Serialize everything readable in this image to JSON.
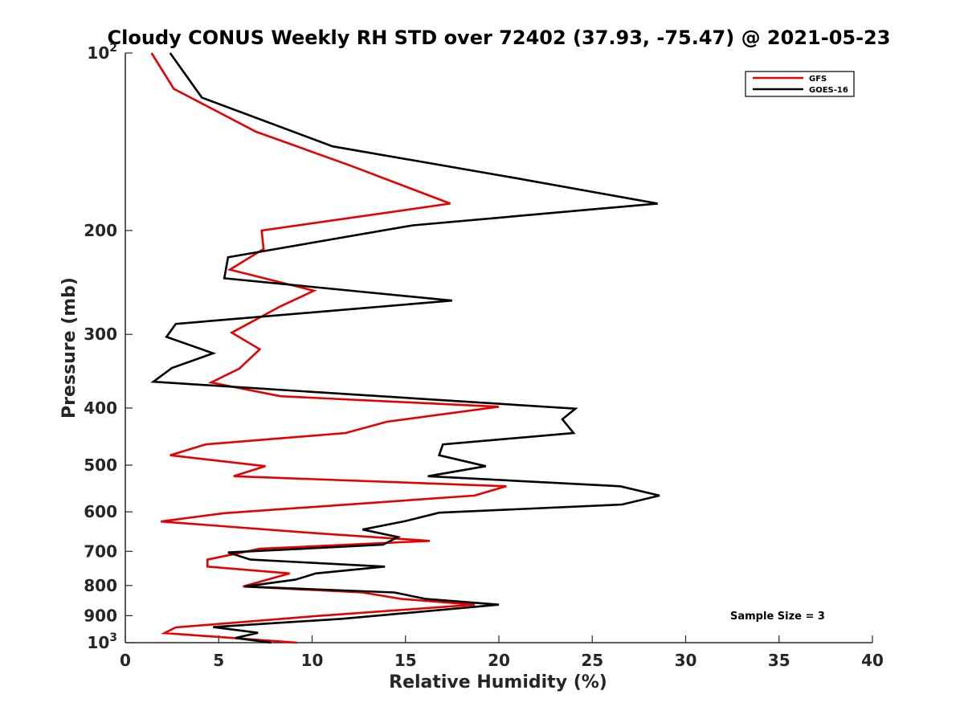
{
  "chart_data": {
    "type": "line",
    "title": "Cloudy CONUS Weekly RH STD over 72402 (37.93, -75.47) @ 2021-05-23",
    "xlabel": "Relative Humidity (%)",
    "ylabel": "Pressure (mb)",
    "xlim": [
      0,
      40
    ],
    "ylim": [
      100,
      1000
    ],
    "yscale": "log",
    "y_reversed": true,
    "grid": false,
    "legend_position": "top-right",
    "x_ticks": [
      0,
      5,
      10,
      15,
      20,
      25,
      30,
      35,
      40
    ],
    "y_ticks": [
      {
        "value": 100,
        "base": "10",
        "exp": "2"
      },
      {
        "value": 200,
        "label": "200"
      },
      {
        "value": 300,
        "label": "300"
      },
      {
        "value": 400,
        "label": "400"
      },
      {
        "value": 500,
        "label": "500"
      },
      {
        "value": 600,
        "label": "600"
      },
      {
        "value": 700,
        "label": "700"
      },
      {
        "value": 800,
        "label": "800"
      },
      {
        "value": 900,
        "label": "900"
      },
      {
        "value": 1000,
        "base": "10",
        "exp": "3"
      }
    ],
    "annotation": "Sample Size = 3",
    "series": [
      {
        "name": "GFS",
        "color": "#e60000",
        "points": [
          [
            1.4,
            100
          ],
          [
            2.6,
            115
          ],
          [
            7,
            136
          ],
          [
            12,
            155
          ],
          [
            17.4,
            180
          ],
          [
            7.3,
            200
          ],
          [
            7.4,
            215
          ],
          [
            5.6,
            233
          ],
          [
            10.1,
            253
          ],
          [
            8.3,
            269
          ],
          [
            5.7,
            298
          ],
          [
            7.2,
            318
          ],
          [
            6.1,
            343
          ],
          [
            4.6,
            362
          ],
          [
            8.3,
            382
          ],
          [
            20,
            398
          ],
          [
            14,
            422
          ],
          [
            11.8,
            441
          ],
          [
            4.3,
            461
          ],
          [
            2.4,
            481
          ],
          [
            7.5,
            502
          ],
          [
            5.8,
            522
          ],
          [
            20.4,
            543
          ],
          [
            18.7,
            563
          ],
          [
            5.3,
            603
          ],
          [
            1.9,
            623
          ],
          [
            10.4,
            653
          ],
          [
            16.3,
            672
          ],
          [
            7.2,
            693
          ],
          [
            4.4,
            723
          ],
          [
            4.4,
            743
          ],
          [
            8.8,
            763
          ],
          [
            6.3,
            803
          ],
          [
            12.7,
            822
          ],
          [
            14.8,
            843
          ],
          [
            18.7,
            862
          ],
          [
            10.1,
            902
          ],
          [
            2.7,
            942
          ],
          [
            2.1,
            963
          ],
          [
            9.2,
            1000
          ]
        ]
      },
      {
        "name": "GOES-16",
        "color": "#000000",
        "points": [
          [
            2.4,
            100
          ],
          [
            4.1,
            119
          ],
          [
            11.1,
            144
          ],
          [
            20.9,
            163
          ],
          [
            28.5,
            180
          ],
          [
            15.4,
            196
          ],
          [
            5.5,
            222
          ],
          [
            5.3,
            241
          ],
          [
            17.5,
            263
          ],
          [
            2.7,
            288
          ],
          [
            2.2,
            303
          ],
          [
            4.7,
            323
          ],
          [
            2.5,
            342
          ],
          [
            1.5,
            361
          ],
          [
            24.1,
            401
          ],
          [
            23.4,
            418
          ],
          [
            24,
            441
          ],
          [
            17,
            461
          ],
          [
            16.8,
            481
          ],
          [
            19.3,
            502
          ],
          [
            16.2,
            522
          ],
          [
            26.5,
            543
          ],
          [
            28.6,
            563
          ],
          [
            26.6,
            583
          ],
          [
            16.8,
            602
          ],
          [
            15,
            622
          ],
          [
            12.7,
            643
          ],
          [
            14.6,
            662
          ],
          [
            13.8,
            682
          ],
          [
            5.5,
            703
          ],
          [
            6.7,
            723
          ],
          [
            13.9,
            743
          ],
          [
            10.2,
            763
          ],
          [
            9.1,
            782
          ],
          [
            6.4,
            803
          ],
          [
            14.4,
            822
          ],
          [
            16.1,
            843
          ],
          [
            20,
            862
          ],
          [
            11.6,
            911
          ],
          [
            4.7,
            941
          ],
          [
            7.1,
            962
          ],
          [
            5.9,
            982
          ],
          [
            7.8,
            1000
          ]
        ]
      }
    ]
  }
}
